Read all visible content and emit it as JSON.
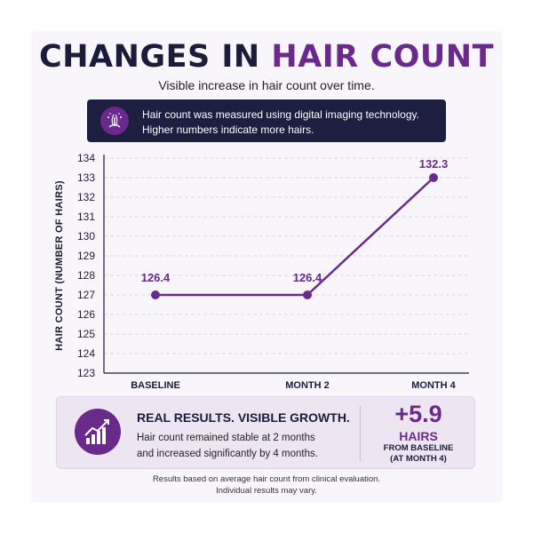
{
  "header": {
    "title_part1": "CHANGES IN",
    "title_part2": "HAIR COUNT",
    "subtitle": "Visible increase in hair count over time."
  },
  "info": {
    "icon": "hair-follicle-icon",
    "line1": "Hair count was measured using digital imaging technology.",
    "line2": "Higher numbers indicate more hairs."
  },
  "chart_data": {
    "type": "line",
    "categories": [
      "BASELINE",
      "MONTH 2",
      "MONTH 4"
    ],
    "series": [
      {
        "values": [
          126.4,
          126.4,
          132.3
        ]
      }
    ],
    "data_labels": [
      "126.4",
      "126.4",
      "132.3"
    ],
    "ylabel": "HAIR COUNT (NUMBER OF HAIRS)",
    "xlabel": "",
    "ylim": [
      123,
      134
    ],
    "yticks": [
      123,
      124,
      125,
      126,
      127,
      128,
      129,
      130,
      131,
      132,
      133,
      134
    ],
    "grid": true,
    "color": "#6a2a8c"
  },
  "results": {
    "icon": "growth-chart-icon",
    "title": "REAL RESULTS. VISIBLE GROWTH.",
    "text_line1": "Hair count remained stable at 2 months",
    "text_line2": "and increased significantly by 4 months.",
    "stat_value": "+5.9",
    "stat_unit": "HAIRS",
    "stat_note1": "FROM BASELINE",
    "stat_note2": "(AT MONTH 4)"
  },
  "footnote": {
    "line1": "Results based on average hair count from clinical evaluation.",
    "line2": "Individual results may vary."
  },
  "colors": {
    "navy": "#1a1c3a",
    "purple": "#6a2a8c",
    "panel": "#f8f6fa"
  }
}
